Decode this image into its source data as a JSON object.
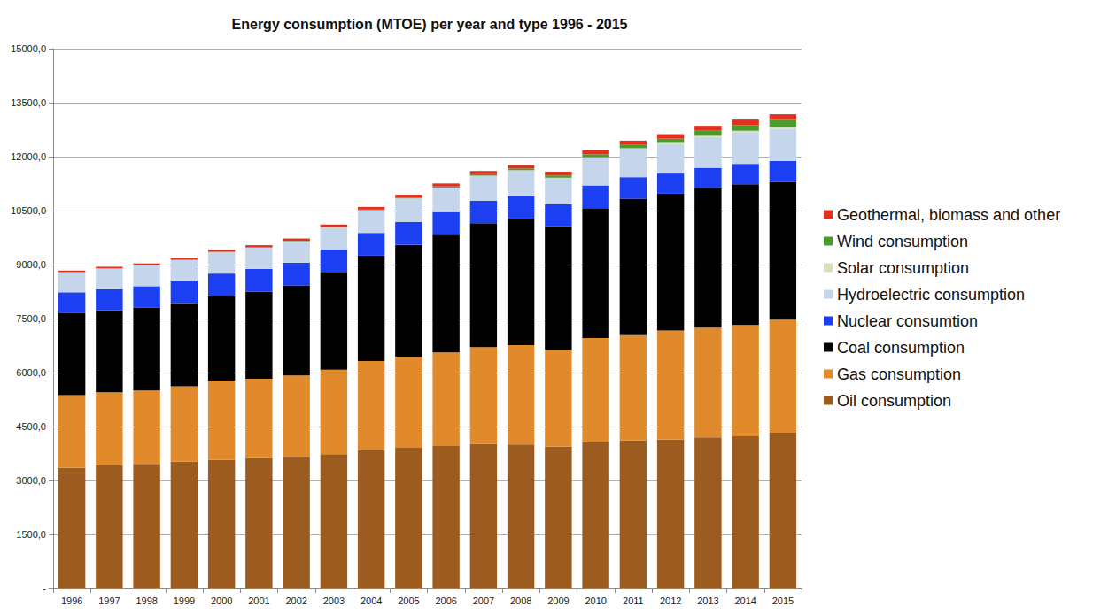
{
  "chart_data": {
    "type": "bar",
    "title": "Energy consumption (MTOE) per year and type 1996 - 2015",
    "categories": [
      "1996",
      "1997",
      "1998",
      "1999",
      "2000",
      "2001",
      "2002",
      "2003",
      "2004",
      "2005",
      "2006",
      "2007",
      "2008",
      "2009",
      "2010",
      "2011",
      "2012",
      "2013",
      "2014",
      "2015"
    ],
    "series": [
      {
        "name": "Oil consumption",
        "color": "#9c5b1f",
        "values": [
          3350,
          3430,
          3460,
          3530,
          3570,
          3620,
          3660,
          3730,
          3850,
          3910,
          3960,
          4020,
          4000,
          3940,
          4060,
          4110,
          4140,
          4200,
          4230,
          4330
        ]
      },
      {
        "name": "Gas consumption",
        "color": "#e08a2c",
        "values": [
          2020,
          2020,
          2040,
          2090,
          2210,
          2210,
          2260,
          2350,
          2470,
          2530,
          2600,
          2690,
          2760,
          2700,
          2900,
          2930,
          3030,
          3050,
          3090,
          3140
        ]
      },
      {
        "name": "Coal consumption",
        "color": "#000000",
        "values": [
          2280,
          2280,
          2300,
          2310,
          2350,
          2420,
          2500,
          2720,
          2930,
          3110,
          3270,
          3440,
          3520,
          3430,
          3610,
          3790,
          3800,
          3880,
          3910,
          3830
        ]
      },
      {
        "name": "Nuclear consumtion",
        "color": "#1c3ff2",
        "values": [
          580,
          590,
          600,
          610,
          620,
          630,
          630,
          620,
          630,
          630,
          630,
          620,
          620,
          610,
          630,
          600,
          560,
          560,
          570,
          580
        ]
      },
      {
        "name": "Hydroelectric consumption",
        "color": "#c5d6ec",
        "values": [
          560,
          570,
          580,
          590,
          600,
          590,
          600,
          610,
          630,
          660,
          680,
          700,
          720,
          730,
          780,
          790,
          830,
          860,
          880,
          890
        ]
      },
      {
        "name": "Solar consumption",
        "color": "#d4e0bd",
        "values": [
          0,
          0,
          0,
          0,
          0,
          0,
          0,
          0,
          0,
          0,
          1,
          2,
          3,
          5,
          7,
          14,
          22,
          29,
          40,
          58
        ]
      },
      {
        "name": "Wind consumption",
        "color": "#4c9a2a",
        "values": [
          2,
          3,
          4,
          5,
          7,
          9,
          12,
          14,
          19,
          23,
          30,
          39,
          50,
          62,
          78,
          93,
          118,
          141,
          160,
          190
        ]
      },
      {
        "name": "Geothermal, biomass and other",
        "color": "#e0301e",
        "values": [
          40,
          45,
          48,
          50,
          55,
          60,
          62,
          68,
          72,
          78,
          83,
          90,
          96,
          104,
          110,
          118,
          126,
          137,
          150,
          160
        ]
      }
    ],
    "ylim": [
      0,
      15000
    ],
    "yticks": [
      {
        "value": 0,
        "label": "-"
      },
      {
        "value": 1500,
        "label": "1500,0"
      },
      {
        "value": 3000,
        "label": "3000,0"
      },
      {
        "value": 4500,
        "label": "4500,0"
      },
      {
        "value": 6000,
        "label": "6000,0"
      },
      {
        "value": 7500,
        "label": "7500,0"
      },
      {
        "value": 9000,
        "label": "9000,0"
      },
      {
        "value": 10500,
        "label": "10500,0"
      },
      {
        "value": 12000,
        "label": "12000,0"
      },
      {
        "value": 13500,
        "label": "13500,0"
      },
      {
        "value": 15000,
        "label": "15000,0"
      }
    ],
    "stacked": true,
    "grid": true,
    "legend": "right"
  }
}
